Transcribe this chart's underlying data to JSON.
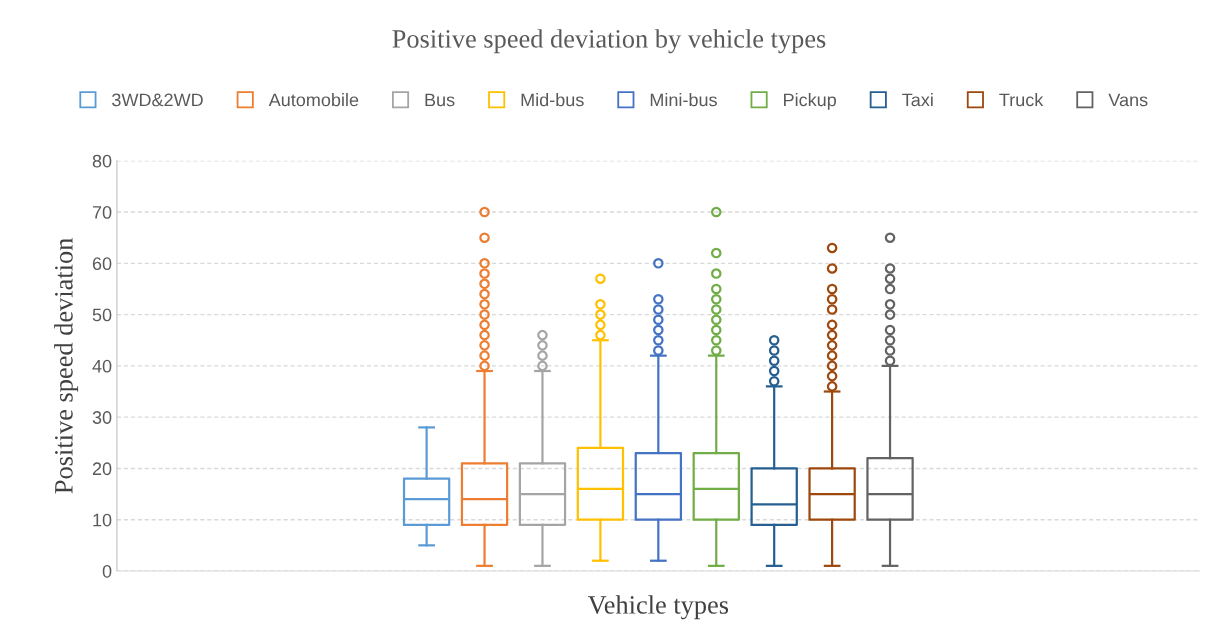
{
  "chart_data": {
    "type": "box",
    "title": "Positive speed deviation by vehicle types",
    "xlabel": "Vehicle types",
    "ylabel": "Positive speed deviation",
    "categories": [
      null
    ],
    "ylim": [
      0,
      80
    ],
    "yticks": [
      0,
      10,
      20,
      30,
      40,
      50,
      60,
      70,
      80
    ],
    "grid": "y",
    "legend": "top",
    "series": [
      {
        "name": "3WD&2WD",
        "color": "#5b9bd5",
        "boxes": [
          {
            "low": 5,
            "q1": 9,
            "median": 14,
            "q3": 18,
            "high": 28
          }
        ]
      },
      {
        "name": "Automobile",
        "color": "#ed7d31",
        "boxes": [
          {
            "low": 1,
            "q1": 9,
            "median": 14,
            "q3": 21,
            "high": 39,
            "outliers": [
              70,
              65,
              60,
              58,
              56,
              54,
              52,
              50,
              48,
              46,
              44,
              42,
              40
            ]
          }
        ]
      },
      {
        "name": "Bus",
        "color": "#a5a5a5",
        "boxes": [
          {
            "low": 1,
            "q1": 9,
            "median": 15,
            "q3": 21,
            "high": 39,
            "outliers": [
              46,
              44,
              42,
              40
            ]
          }
        ]
      },
      {
        "name": "Mid-bus",
        "color": "#ffc000",
        "boxes": [
          {
            "low": 2,
            "q1": 10,
            "median": 16,
            "q3": 24,
            "high": 45,
            "outliers": [
              57,
              52,
              50,
              48,
              46
            ]
          }
        ]
      },
      {
        "name": "Mini-bus",
        "color": "#4472c4",
        "boxes": [
          {
            "low": 2,
            "q1": 10,
            "median": 15,
            "q3": 23,
            "high": 42,
            "outliers": [
              60,
              53,
              51,
              49,
              47,
              45,
              43
            ]
          }
        ]
      },
      {
        "name": "Pickup",
        "color": "#70ad47",
        "boxes": [
          {
            "low": 1,
            "q1": 10,
            "median": 16,
            "q3": 23,
            "high": 42,
            "outliers": [
              70,
              62,
              58,
              55,
              53,
              51,
              49,
              47,
              45,
              43
            ]
          }
        ]
      },
      {
        "name": "Taxi",
        "color": "#255e91",
        "boxes": [
          {
            "low": 1,
            "q1": 9,
            "median": 13,
            "q3": 20,
            "high": 36,
            "outliers": [
              45,
              43,
              41,
              39,
              37
            ]
          }
        ]
      },
      {
        "name": "Truck",
        "color": "#9e480e",
        "boxes": [
          {
            "low": 1,
            "q1": 10,
            "median": 15,
            "q3": 20,
            "high": 35,
            "outliers": [
              63,
              59,
              55,
              53,
              51,
              48,
              46,
              44,
              42,
              40,
              38,
              36
            ]
          }
        ]
      },
      {
        "name": "Vans",
        "color": "#636363",
        "boxes": [
          {
            "low": 1,
            "q1": 10,
            "median": 15,
            "q3": 22,
            "high": 40,
            "outliers": [
              65,
              59,
              57,
              55,
              52,
              50,
              47,
              45,
              43,
              41
            ]
          }
        ]
      }
    ]
  }
}
